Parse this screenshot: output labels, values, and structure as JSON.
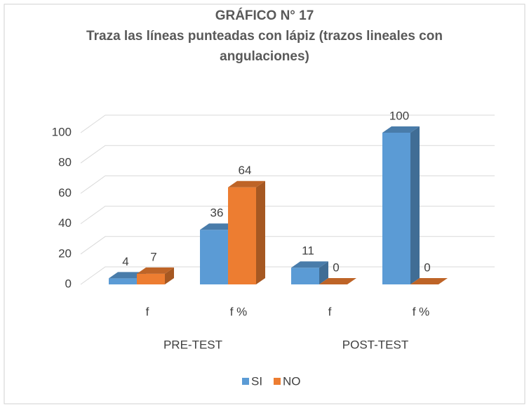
{
  "chart_data": {
    "type": "bar3d",
    "title": "GRÁFICO N° 17",
    "subtitle": "Traza las líneas punteadas con lápiz (trazos lineales con angulaciones)",
    "categories": [
      "f",
      "f %",
      "f",
      "f %"
    ],
    "groups": [
      "PRE-TEST",
      "POST-TEST"
    ],
    "series": [
      {
        "name": "SI",
        "color": "#5b9bd5",
        "values": [
          4,
          36,
          11,
          100
        ]
      },
      {
        "name": "NO",
        "color": "#ed7d31",
        "values": [
          7,
          64,
          0,
          0
        ]
      }
    ],
    "ylim": [
      0,
      100
    ],
    "yticks": [
      0,
      20,
      40,
      60,
      80,
      100
    ],
    "grid": true,
    "legend": "bottom"
  }
}
